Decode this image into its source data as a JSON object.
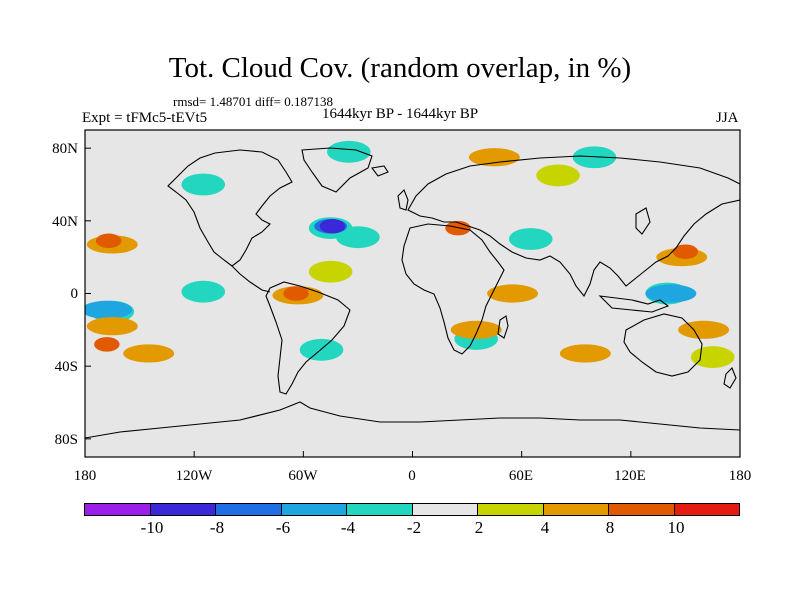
{
  "title": "Tot. Cloud Cov. (random overlap, in %)",
  "stats_line": "rmsd= 1.48701 diff= 0.187138",
  "experiment": "Expt = tFMc5-tEVt5",
  "period": "1644kyr BP - 1644kyr BP",
  "season": "JJA",
  "axes": {
    "lat_labels": [
      "80N",
      "40N",
      "0",
      "40S",
      "80S"
    ],
    "lon_labels": [
      "180",
      "120W",
      "60W",
      "0",
      "60E",
      "120E",
      "180"
    ]
  },
  "colorbar": {
    "colors": [
      "#9b1fe8",
      "#3b28d8",
      "#1f6ee6",
      "#1ea6e0",
      "#22d6c0",
      "#e6e6e6",
      "#c8d400",
      "#e29a00",
      "#e25a00",
      "#e61b12"
    ],
    "labels": [
      "-10",
      "-8",
      "-6",
      "-4",
      "-2",
      "2",
      "4",
      "8",
      "10"
    ]
  },
  "map": {
    "background_color": "#e6e6e6",
    "anomaly_patches": [
      {
        "name": "north-pacific-west-positive",
        "lon": -165,
        "lat": 27,
        "level": 4
      },
      {
        "name": "north-pacific-west-core",
        "lon": -167,
        "lat": 29,
        "level": 8
      },
      {
        "name": "central-pacific-negative",
        "lon": -115,
        "lat": 1,
        "level": -2
      },
      {
        "name": "south-pacific-negative",
        "lon": -165,
        "lat": -10,
        "level": -2
      },
      {
        "name": "south-pacific-core",
        "lon": -168,
        "lat": -9,
        "level": -4
      },
      {
        "name": "south-pacific-band",
        "lon": -145,
        "lat": -33,
        "level": 4
      },
      {
        "name": "south-pacific-band-core",
        "lon": -168,
        "lat": -28,
        "level": 8
      },
      {
        "name": "south-pacific-band-2",
        "lon": -165,
        "lat": -18,
        "level": 4
      },
      {
        "name": "amazon-positive",
        "lon": -63,
        "lat": -1,
        "level": 4
      },
      {
        "name": "amazon-core",
        "lon": -64,
        "lat": 0,
        "level": 8
      },
      {
        "name": "south-america-negative",
        "lon": -50,
        "lat": -31,
        "level": -2
      },
      {
        "name": "north-atlantic-negative",
        "lon": -45,
        "lat": 36,
        "level": -2
      },
      {
        "name": "north-atlantic-core",
        "lon": -45,
        "lat": 37,
        "level": -6
      },
      {
        "name": "north-atlantic-center",
        "lon": -44,
        "lat": 37,
        "level": -8
      },
      {
        "name": "mid-atlantic-negative",
        "lon": -30,
        "lat": 31,
        "level": -2
      },
      {
        "name": "tropical-atlantic-positive",
        "lon": -45,
        "lat": 12,
        "level": 2
      },
      {
        "name": "africa-east-negative",
        "lon": 35,
        "lat": -25,
        "level": -2
      },
      {
        "name": "africa-south-positive",
        "lon": 35,
        "lat": -20,
        "level": 4
      },
      {
        "name": "indian-ocean-positive",
        "lon": 55,
        "lat": 0,
        "level": 4
      },
      {
        "name": "indian-ocean-south",
        "lon": 95,
        "lat": -33,
        "level": 4
      },
      {
        "name": "arabian-sea-negative",
        "lon": 65,
        "lat": 30,
        "level": -2
      },
      {
        "name": "west-pacific-negative",
        "lon": 140,
        "lat": 0,
        "level": -2
      },
      {
        "name": "west-pacific-core",
        "lon": 142,
        "lat": 0,
        "level": -4
      },
      {
        "name": "north-pacific-east-positive",
        "lon": 148,
        "lat": 20,
        "level": 4
      },
      {
        "name": "north-pacific-east-core",
        "lon": 150,
        "lat": 23,
        "level": 8
      },
      {
        "name": "mediterranean-positive",
        "lon": 25,
        "lat": 36,
        "level": 8
      },
      {
        "name": "canada-negative",
        "lon": -115,
        "lat": 60,
        "level": -2
      },
      {
        "name": "greenland-negative",
        "lon": -35,
        "lat": 78,
        "level": -2
      },
      {
        "name": "arctic-positive",
        "lon": 45,
        "lat": 75,
        "level": 4
      },
      {
        "name": "siberia-negative",
        "lon": 100,
        "lat": 75,
        "level": -2
      },
      {
        "name": "north-eurasia-positive",
        "lon": 80,
        "lat": 65,
        "level": 2
      },
      {
        "name": "pacific-south-east",
        "lon": 160,
        "lat": -20,
        "level": 4
      },
      {
        "name": "south-pacific-east-positive",
        "lon": 165,
        "lat": -35,
        "level": 2
      }
    ]
  }
}
